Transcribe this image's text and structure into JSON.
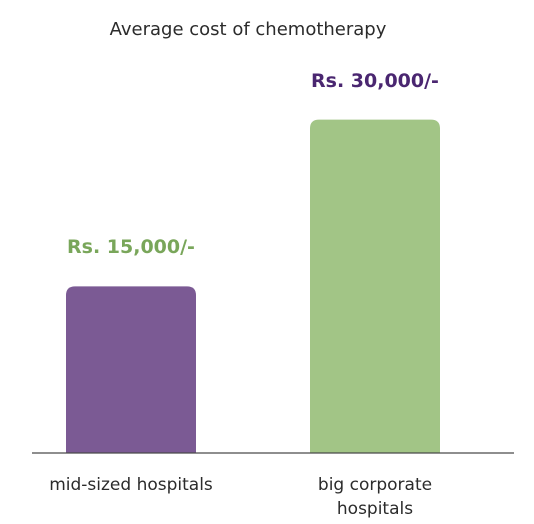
{
  "chart_data": {
    "type": "bar",
    "title": "Average cost of chemotherapy",
    "categories": [
      "mid-sized hospitals",
      "big corporate hospitals"
    ],
    "category_labels": [
      [
        "mid-sized hospitals"
      ],
      [
        "big corporate",
        "hospitals"
      ]
    ],
    "values": [
      15000,
      30000
    ],
    "data_labels": [
      "Rs. 15,000/-",
      "Rs. 30,000/-"
    ],
    "colors": [
      "#7b5a94",
      "#a2c586"
    ],
    "label_colors": [
      "#79a65a",
      "#4a2670"
    ],
    "xlabel": "",
    "ylabel": "",
    "ylim": [
      0,
      36000
    ],
    "grid": false,
    "legend": "none"
  }
}
